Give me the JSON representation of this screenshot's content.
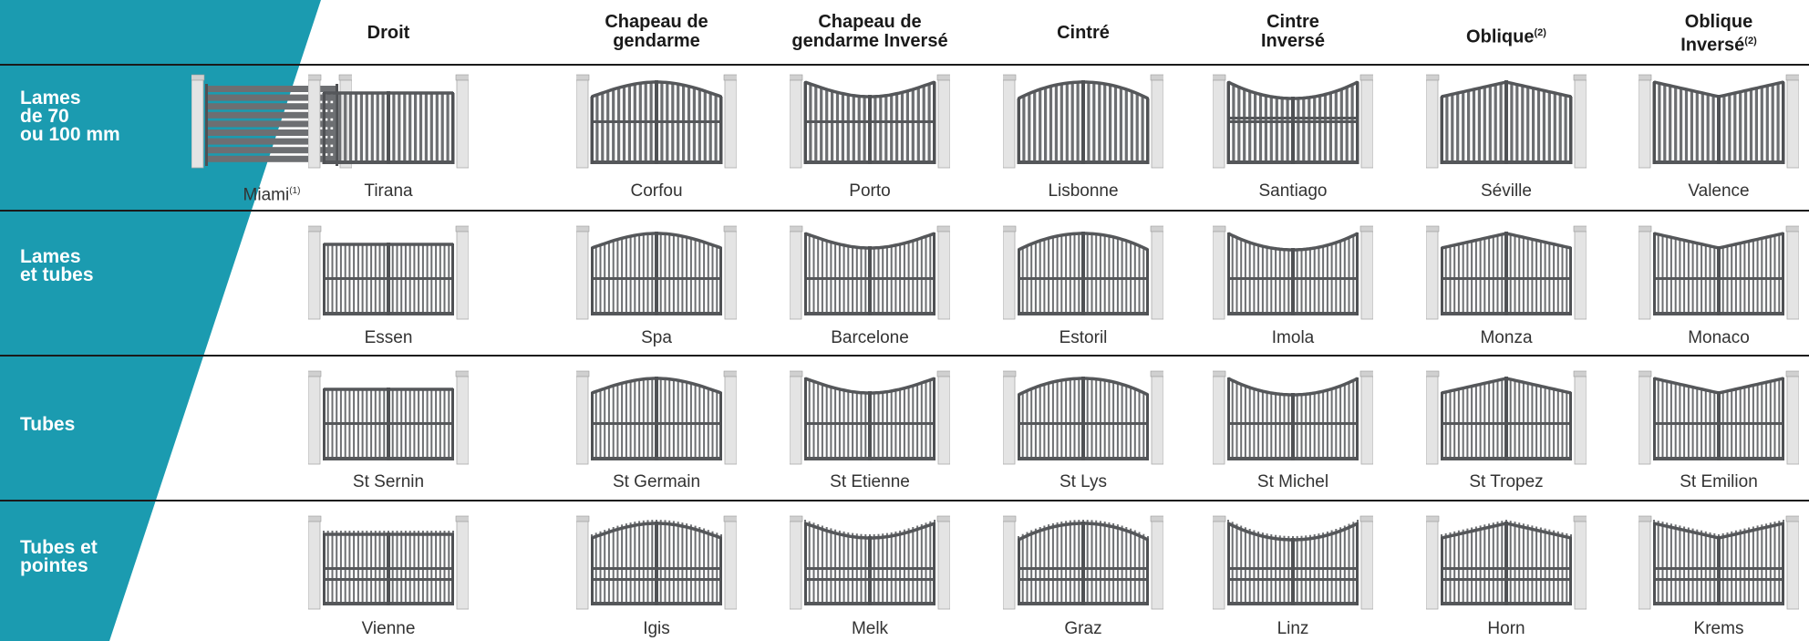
{
  "colors": {
    "accent": "#1b9bb0",
    "gate": "#6d6f72",
    "pillar": "#e4e4e4"
  },
  "columns": [
    {
      "id": "droit",
      "lines": [
        "Droit"
      ],
      "sup": ""
    },
    {
      "id": "chapeau",
      "lines": [
        "Chapeau de",
        "gendarme"
      ],
      "sup": ""
    },
    {
      "id": "chapeau-inverse",
      "lines": [
        "Chapeau de",
        "gendarme Inversé"
      ],
      "sup": ""
    },
    {
      "id": "cintre",
      "lines": [
        "Cintré"
      ],
      "sup": ""
    },
    {
      "id": "cintre-inverse",
      "lines": [
        "Cintre",
        "Inversé"
      ],
      "sup": ""
    },
    {
      "id": "oblique",
      "lines": [
        "Oblique"
      ],
      "sup": "(2)"
    },
    {
      "id": "oblique-inverse",
      "lines": [
        "Oblique",
        "Inversé"
      ],
      "sup": "(2)"
    }
  ],
  "rows": [
    {
      "id": "lames",
      "label": [
        "Lames",
        "de 70",
        "ou 100 mm"
      ],
      "models": [
        {
          "name": "Miami",
          "sup": "(1)",
          "shape": "flat",
          "style": "horizontal"
        },
        {
          "name": "Tirana",
          "sup": "",
          "shape": "flat",
          "style": "slats"
        },
        {
          "name": "Corfou",
          "sup": "",
          "shape": "chapeau",
          "style": "slats"
        },
        {
          "name": "Porto",
          "sup": "",
          "shape": "chapeau-inv",
          "style": "slats"
        },
        {
          "name": "Lisbonne",
          "sup": "",
          "shape": "cintre",
          "style": "slats"
        },
        {
          "name": "Santiago",
          "sup": "",
          "shape": "cintre-inv",
          "style": "slats"
        },
        {
          "name": "Séville",
          "sup": "",
          "shape": "oblique",
          "style": "slats"
        },
        {
          "name": "Valence",
          "sup": "",
          "shape": "oblique-inv",
          "style": "slats"
        }
      ]
    },
    {
      "id": "lames-tubes",
      "label": [
        "Lames",
        "et tubes"
      ],
      "models": [
        {
          "name": "Essen",
          "sup": "",
          "shape": "flat",
          "style": "mixed"
        },
        {
          "name": "Spa",
          "sup": "",
          "shape": "chapeau",
          "style": "mixed"
        },
        {
          "name": "Barcelone",
          "sup": "",
          "shape": "chapeau-inv",
          "style": "mixed"
        },
        {
          "name": "Estoril",
          "sup": "",
          "shape": "cintre",
          "style": "mixed"
        },
        {
          "name": "Imola",
          "sup": "",
          "shape": "cintre-inv",
          "style": "mixed"
        },
        {
          "name": "Monza",
          "sup": "",
          "shape": "oblique",
          "style": "mixed"
        },
        {
          "name": "Monaco",
          "sup": "",
          "shape": "oblique-inv",
          "style": "mixed"
        }
      ]
    },
    {
      "id": "tubes",
      "label": [
        "Tubes"
      ],
      "models": [
        {
          "name": "St Sernin",
          "sup": "",
          "shape": "flat",
          "style": "tubes"
        },
        {
          "name": "St Germain",
          "sup": "",
          "shape": "chapeau",
          "style": "tubes"
        },
        {
          "name": "St Etienne",
          "sup": "",
          "shape": "chapeau-inv",
          "style": "tubes"
        },
        {
          "name": "St Lys",
          "sup": "",
          "shape": "cintre",
          "style": "tubes"
        },
        {
          "name": "St Michel",
          "sup": "",
          "shape": "cintre-inv",
          "style": "tubes"
        },
        {
          "name": "St Tropez",
          "sup": "",
          "shape": "oblique",
          "style": "tubes"
        },
        {
          "name": "St Emilion",
          "sup": "",
          "shape": "oblique-inv",
          "style": "tubes"
        }
      ]
    },
    {
      "id": "tubes-pointes",
      "label": [
        "Tubes et",
        "pointes"
      ],
      "models": [
        {
          "name": "Vienne",
          "sup": "",
          "shape": "flat",
          "style": "pointes"
        },
        {
          "name": "Igis",
          "sup": "",
          "shape": "chapeau",
          "style": "pointes"
        },
        {
          "name": "Melk",
          "sup": "",
          "shape": "chapeau-inv",
          "style": "pointes"
        },
        {
          "name": "Graz",
          "sup": "",
          "shape": "cintre",
          "style": "pointes"
        },
        {
          "name": "Linz",
          "sup": "",
          "shape": "cintre-inv",
          "style": "pointes"
        },
        {
          "name": "Horn",
          "sup": "",
          "shape": "oblique",
          "style": "pointes"
        },
        {
          "name": "Krems",
          "sup": "",
          "shape": "oblique-inv",
          "style": "pointes"
        }
      ]
    }
  ]
}
